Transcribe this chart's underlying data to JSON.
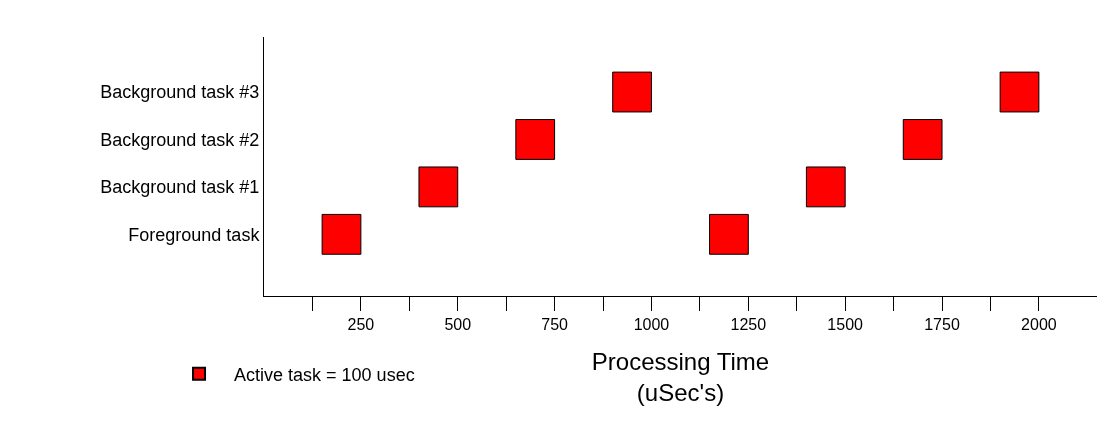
{
  "chart_data": {
    "type": "bar",
    "orientation": "horizontal",
    "xlabel": "Processing Time\n(uSec's)",
    "categories": [
      "Background task #3",
      "Background task #2",
      "Background task #1",
      "Foreground task"
    ],
    "series": [
      {
        "name": "Active task = 100 usec",
        "color": "#ff0000",
        "values": [
          100,
          100,
          100,
          100
        ],
        "base": [
          900,
          650,
          400,
          150
        ]
      },
      {
        "color": "#ff0000",
        "values": [
          100,
          100,
          100,
          100
        ],
        "base": [
          1900,
          1650,
          1400,
          1150
        ]
      }
    ],
    "xlim": [
      0,
      2150
    ],
    "xticks": [
      {
        "value": 125,
        "label": null
      },
      250,
      {
        "value": 375,
        "label": null
      },
      500,
      {
        "value": 625,
        "label": null
      },
      750,
      {
        "value": 875,
        "label": null
      },
      1000,
      {
        "value": 1125,
        "label": null
      },
      1250,
      {
        "value": 1375,
        "label": null
      },
      1500,
      {
        "value": 1625,
        "label": null
      },
      1750,
      {
        "value": 1875,
        "label": null
      },
      2000
    ],
    "legend": "bottom left"
  }
}
